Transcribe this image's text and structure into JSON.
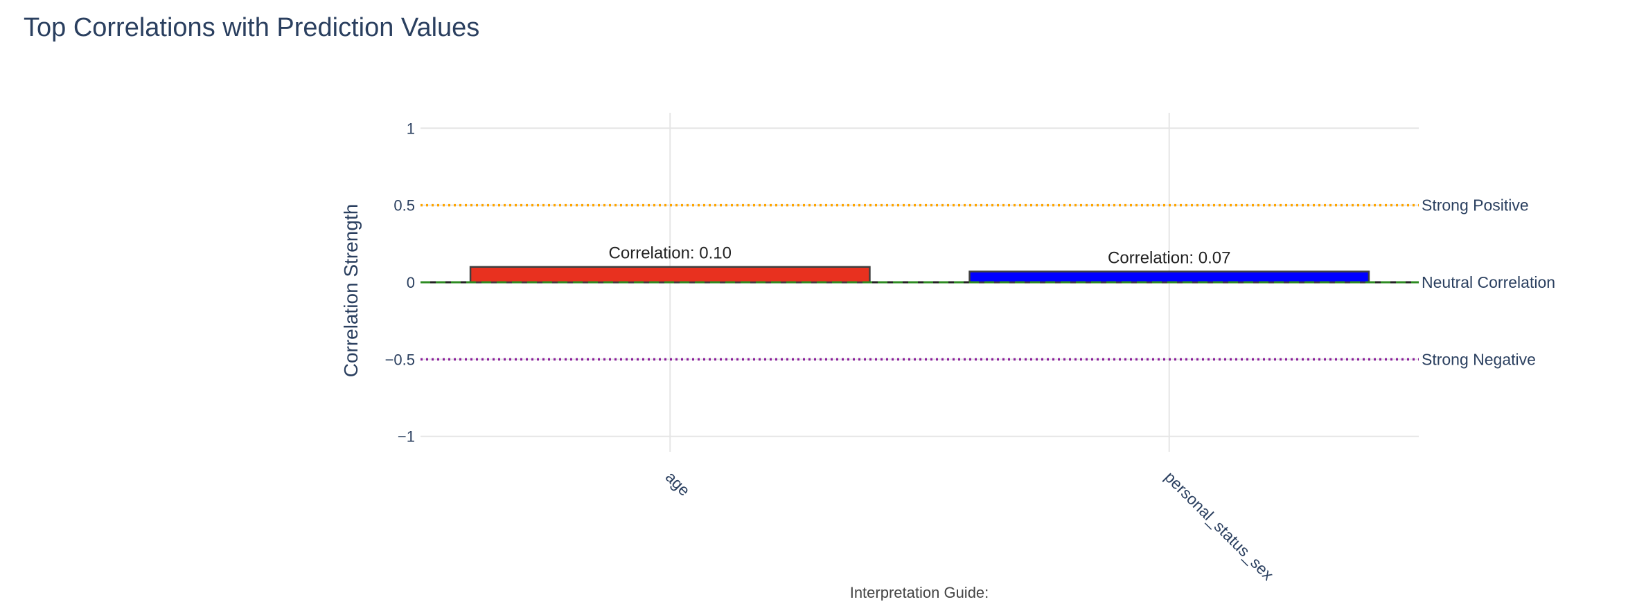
{
  "chart_data": {
    "type": "bar",
    "title": "Top Correlations with Prediction Values",
    "xlabel": "",
    "ylabel": "Correlation Strength",
    "categories": [
      "age",
      "personal_status_sex"
    ],
    "values": [
      0.1,
      0.07
    ],
    "bar_colors": [
      "#e8311f",
      "#0000ff"
    ],
    "bar_outline_color": "#3f3f3f",
    "bar_labels": [
      "Correlation: 0.10",
      "Correlation: 0.07"
    ],
    "ylim": [
      -1.1,
      1.1
    ],
    "yticks": [
      1,
      0.5,
      0,
      -0.5,
      -1
    ],
    "ytick_labels": [
      "1",
      "0.5",
      "0",
      "−0.5",
      "−1"
    ],
    "grid": true,
    "reference_lines": [
      {
        "y": 0.5,
        "label": "Strong Positive",
        "color": "#ffa500",
        "style": "dotted"
      },
      {
        "y": 0,
        "label": "Neutral Correlation",
        "color": "#2e8b22",
        "style": "dashed"
      },
      {
        "y": -0.5,
        "label": "Strong Negative",
        "color": "#8b1f9b",
        "style": "dotted"
      }
    ],
    "annotations": [
      "Interpretation Guide:"
    ]
  },
  "colors": {
    "title": "#2a3f5f",
    "axis_text": "#2a3f5f",
    "grid": "#e5e5e5",
    "annotation": "#444444"
  }
}
